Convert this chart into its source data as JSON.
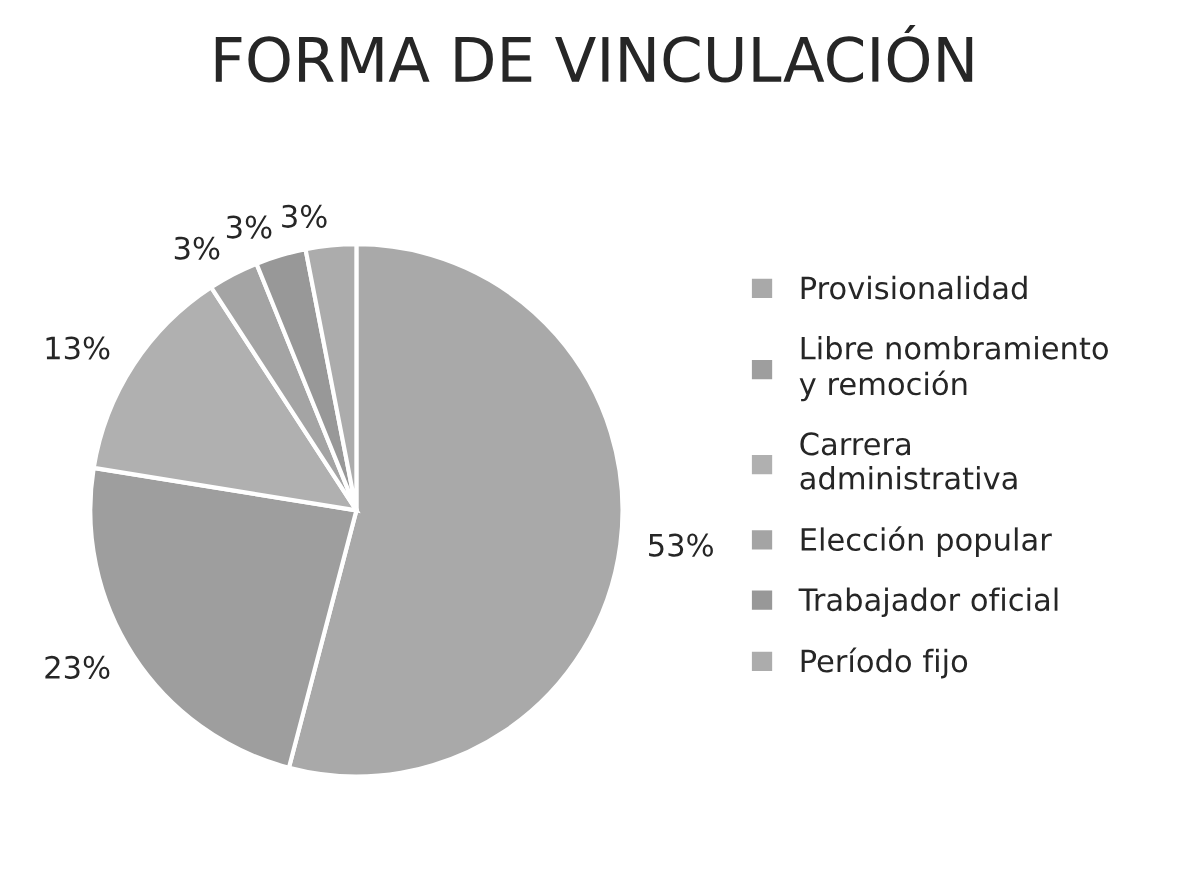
{
  "chart_data": {
    "type": "pie",
    "title": "FORMA DE VINCULACIÓN",
    "categories": [
      "Provisionalidad",
      "Libre nombramiento\ny remoción",
      "Carrera\nadministrativa",
      "Elección popular",
      "Trabajador oficial",
      "Período fijo"
    ],
    "values": [
      53,
      23,
      13,
      3,
      3,
      3
    ],
    "value_labels": [
      "53%",
      "23%",
      "13%",
      "3%",
      "3%",
      "3%"
    ],
    "colors": [
      "#a9a9a9",
      "#9e9e9e",
      "#b0b0b0",
      "#a4a4a4",
      "#989898",
      "#acacac"
    ],
    "legend": "right"
  }
}
